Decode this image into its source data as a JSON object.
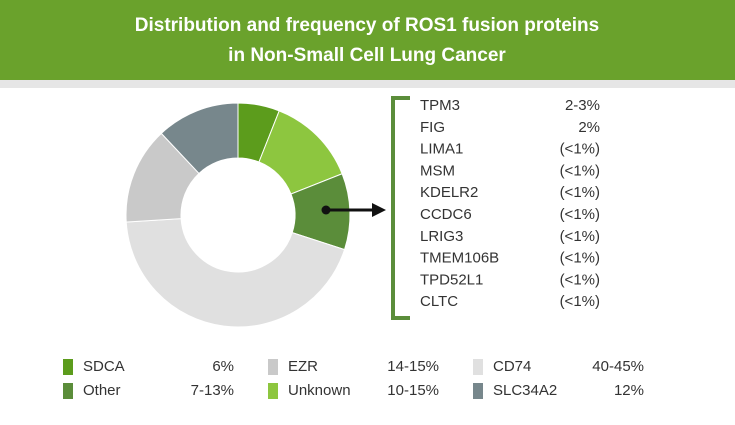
{
  "chart_data": {
    "type": "pie",
    "title": "Distribution and frequency of ROS1 fusion proteins",
    "subtitle": "in Non-Small Cell Lung Cancer",
    "categories": [
      "SDCA",
      "Unknown",
      "Other",
      "CD74",
      "EZR",
      "SLC34A2"
    ],
    "values": [
      6,
      13,
      11,
      44,
      14,
      12
    ],
    "value_labels": [
      "6%",
      "10-15%",
      "7-13%",
      "40-45%",
      "14-15%",
      "12%"
    ],
    "colors": [
      "#5c9c1c",
      "#8dc63f",
      "#5b8d3a",
      "#e0e0e0",
      "#c9c9c9",
      "#77878c"
    ],
    "legend_order": [
      0,
      2,
      4,
      1,
      3,
      5
    ],
    "highlight": 2,
    "details": [
      {
        "name": "TPM3",
        "share": "2-3%"
      },
      {
        "name": "FIG",
        "share": "2%"
      },
      {
        "name": "LIMA1",
        "share": "(<1%)"
      },
      {
        "name": "MSM",
        "share": "(<1%)"
      },
      {
        "name": "KDELR2",
        "share": "(<1%)"
      },
      {
        "name": "CCDC6",
        "share": "(<1%)"
      },
      {
        "name": "LRIG3",
        "share": "(<1%)"
      },
      {
        "name": "TMEM106B",
        "share": "(<1%)"
      },
      {
        "name": "TPD52L1",
        "share": "(<1%)"
      },
      {
        "name": "CLTC",
        "share": "(<1%)"
      }
    ]
  }
}
